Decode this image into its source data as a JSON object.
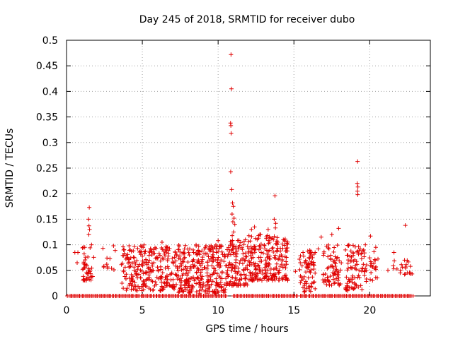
{
  "chart_data": {
    "type": "scatter",
    "title": "Day 245 of 2018, SRMTID for receiver dubo",
    "xlabel": "GPS time / hours",
    "ylabel": "SRMTID / TECUs",
    "xlim": [
      0,
      24
    ],
    "ylim": [
      0,
      0.5
    ],
    "xticks": [
      0,
      5,
      10,
      15,
      20
    ],
    "xtick_labels": [
      "0",
      "5",
      "10",
      "15",
      "20"
    ],
    "yticks": [
      0,
      0.05,
      0.1,
      0.15,
      0.2,
      0.25,
      0.3,
      0.35,
      0.4,
      0.45,
      0.5
    ],
    "ytick_labels": [
      "0",
      "0.05",
      "0.1",
      "0.15",
      "0.2",
      "0.25",
      "0.3",
      "0.35",
      "0.4",
      "0.45",
      "0.5"
    ],
    "grid": true,
    "marker": "plus",
    "color": "#e00000",
    "series": [
      {
        "name": "SRMTID",
        "points": [
          [
            10.85,
            0.472
          ],
          [
            10.88,
            0.405
          ],
          [
            10.82,
            0.338
          ],
          [
            10.84,
            0.333
          ],
          [
            10.86,
            0.318
          ],
          [
            10.83,
            0.243
          ],
          [
            10.9,
            0.208
          ],
          [
            10.95,
            0.182
          ],
          [
            11.0,
            0.175
          ],
          [
            10.92,
            0.16
          ],
          [
            11.05,
            0.152
          ],
          [
            10.97,
            0.145
          ],
          [
            11.1,
            0.14
          ],
          [
            11.02,
            0.125
          ],
          [
            10.93,
            0.118
          ],
          [
            19.2,
            0.263
          ],
          [
            19.18,
            0.22
          ],
          [
            19.22,
            0.213
          ],
          [
            19.19,
            0.205
          ],
          [
            19.21,
            0.198
          ],
          [
            13.75,
            0.196
          ],
          [
            13.7,
            0.15
          ],
          [
            13.8,
            0.142
          ],
          [
            13.78,
            0.133
          ],
          [
            1.5,
            0.173
          ],
          [
            1.45,
            0.15
          ],
          [
            1.48,
            0.137
          ],
          [
            1.52,
            0.13
          ],
          [
            1.47,
            0.12
          ],
          [
            22.35,
            0.138
          ],
          [
            20.05,
            0.117
          ],
          [
            17.95,
            0.132
          ],
          [
            17.5,
            0.12
          ],
          [
            16.8,
            0.115
          ],
          [
            12.4,
            0.135
          ],
          [
            12.2,
            0.13
          ],
          [
            12.8,
            0.12
          ],
          [
            13.3,
            0.13
          ],
          [
            14.3,
            0.11
          ],
          [
            10.0,
            0.108
          ],
          [
            9.2,
            0.098
          ],
          [
            8.1,
            0.08
          ],
          [
            6.3,
            0.105
          ],
          [
            6.6,
            0.09
          ],
          [
            4.9,
            0.098
          ],
          [
            5.05,
            0.095
          ],
          [
            4.2,
            0.09
          ],
          [
            3.1,
            0.098
          ],
          [
            2.4,
            0.093
          ],
          [
            0.55,
            0.085
          ],
          [
            0.75,
            0.085
          ],
          [
            0.7,
            0.065
          ],
          [
            1.2,
            0.095
          ],
          [
            1.65,
            0.1
          ],
          [
            15.6,
            0.085
          ],
          [
            16.0,
            0.075
          ],
          [
            16.6,
            0.092
          ],
          [
            18.4,
            0.09
          ],
          [
            19.6,
            0.09
          ],
          [
            20.4,
            0.095
          ],
          [
            21.6,
            0.085
          ],
          [
            22.3,
            0.07
          ],
          [
            22.7,
            0.045
          ],
          [
            21.2,
            0.05
          ],
          [
            15.1,
            0.048
          ],
          [
            14.1,
            0.093
          ],
          [
            7.8,
            0.075
          ],
          [
            9.5,
            0.09
          ],
          [
            11.8,
            0.11
          ]
        ],
        "dense_clusters": [
          {
            "x_range": [
              1.05,
              1.8
            ],
            "y_range": [
              0.03,
              0.095
            ],
            "count": 40
          },
          {
            "x_range": [
              2.3,
              3.3
            ],
            "y_range": [
              0.05,
              0.095
            ],
            "count": 10
          },
          {
            "x_range": [
              3.6,
              6.9
            ],
            "y_range": [
              0.01,
              0.1
            ],
            "count": 220
          },
          {
            "x_range": [
              6.9,
              10.5
            ],
            "y_range": [
              0.005,
              0.1
            ],
            "count": 300
          },
          {
            "x_range": [
              10.5,
              12.0
            ],
            "y_range": [
              0.02,
              0.11
            ],
            "count": 120
          },
          {
            "x_range": [
              12.0,
              14.6
            ],
            "y_range": [
              0.03,
              0.12
            ],
            "count": 220
          },
          {
            "x_range": [
              15.35,
              16.4
            ],
            "y_range": [
              0.005,
              0.09
            ],
            "count": 70
          },
          {
            "x_range": [
              16.9,
              18.2
            ],
            "y_range": [
              0.02,
              0.1
            ],
            "count": 70
          },
          {
            "x_range": [
              18.4,
              19.8
            ],
            "y_range": [
              0.01,
              0.1
            ],
            "count": 90
          },
          {
            "x_range": [
              20.0,
              20.6
            ],
            "y_range": [
              0.03,
              0.09
            ],
            "count": 20
          },
          {
            "x_range": [
              21.4,
              22.8
            ],
            "y_range": [
              0.04,
              0.07
            ],
            "count": 20
          }
        ],
        "zero_baseline_ranges": [
          [
            0.05,
            10.6
          ],
          [
            11.0,
            15.3
          ],
          [
            15.4,
            22.9
          ]
        ],
        "zero_baseline_count": 250
      }
    ]
  }
}
